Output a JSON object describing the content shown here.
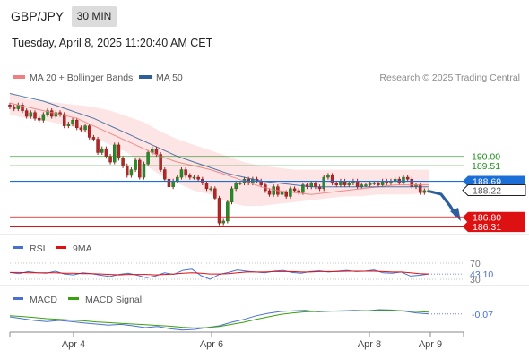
{
  "header": {
    "pair": "GBP/JPY",
    "timeframe": "30 MIN",
    "datetime": "Tuesday, April 8, 2025 11:20:40 AM CET"
  },
  "legend": {
    "ma20": "MA 20 + Bollinger Bands",
    "ma50": "MA 50",
    "research": "Research © 2025 Trading Central",
    "colors": {
      "ma20": "#f08080",
      "ma50": "#2f5f9a",
      "band": "#fde0e0"
    }
  },
  "chart_data": [
    {
      "type": "candlestick",
      "title": "GBP/JPY 30 MIN",
      "xlabel": "",
      "ylabel": "",
      "x_ticks": [
        "Apr 4",
        "Apr 6",
        "Apr 8",
        "Apr 9"
      ],
      "ylim": [
        185.8,
        193.7
      ],
      "close": [
        192.6,
        192.5,
        192.7,
        192.4,
        192.1,
        192.3,
        192.0,
        191.9,
        192.2,
        192.4,
        192.1,
        192.3,
        192.2,
        191.6,
        191.7,
        191.9,
        191.5,
        191.4,
        191.6,
        191.0,
        190.9,
        190.2,
        190.4,
        190.0,
        189.7,
        190.6,
        189.9,
        189.5,
        189.0,
        189.3,
        189.8,
        188.9,
        189.6,
        190.2,
        190.4,
        190.1,
        189.3,
        188.8,
        188.4,
        188.7,
        188.9,
        189.3,
        189.0,
        188.9,
        188.9,
        188.8,
        188.6,
        188.3,
        188.3,
        187.8,
        186.5,
        186.6,
        187.6,
        188.3,
        188.6,
        188.6,
        188.8,
        188.6,
        188.8,
        188.7,
        188.5,
        188.2,
        188.0,
        188.4,
        188.0,
        188.1,
        187.9,
        188.3,
        188.2,
        188.1,
        188.5,
        188.4,
        188.6,
        188.4,
        188.3,
        188.9,
        189.0,
        188.6,
        188.5,
        188.7,
        188.5,
        188.6,
        188.7,
        188.4,
        188.5,
        188.5,
        188.6,
        188.6,
        188.5,
        188.7,
        188.6,
        188.7,
        188.8,
        188.6,
        188.9,
        188.8,
        188.4,
        188.5,
        188.1,
        188.2,
        188.2
      ],
      "series": [
        {
          "name": "MA 20",
          "values": [
            192.8,
            192.6,
            192.4,
            192.2,
            192.0,
            191.6,
            191.2,
            190.8,
            190.4,
            190.0,
            189.7,
            189.5,
            189.3,
            189.0,
            188.7,
            188.4,
            188.2,
            188.1,
            188.0,
            188.1,
            188.2,
            188.3,
            188.4,
            188.5,
            188.5,
            188.5
          ]
        },
        {
          "name": "MA 50",
          "values": [
            193.3,
            193.1,
            192.9,
            192.6,
            192.3,
            192.0,
            191.6,
            191.2,
            190.8,
            190.4,
            190.0,
            189.7,
            189.4,
            189.1,
            188.9,
            188.7,
            188.6,
            188.5,
            188.4,
            188.4,
            188.4,
            188.4,
            188.4,
            188.4,
            188.4,
            188.4
          ]
        }
      ],
      "bollinger_upper": [
        193.3,
        193.0,
        192.9,
        192.8,
        192.7,
        192.6,
        192.4,
        192.1,
        191.8,
        191.3,
        190.9,
        190.6,
        190.3,
        190.0,
        189.7,
        189.5,
        189.4,
        189.3,
        189.3,
        189.3,
        189.3,
        189.3,
        189.3,
        189.3,
        189.3,
        189.3
      ],
      "bollinger_lower": [
        192.2,
        192.0,
        191.9,
        191.7,
        191.5,
        191.0,
        190.6,
        190.2,
        189.6,
        189.0,
        188.6,
        188.2,
        188.0,
        187.6,
        187.4,
        187.4,
        187.5,
        187.6,
        187.7,
        187.8,
        187.9,
        187.9,
        188.0,
        188.0,
        188.0,
        188.1
      ],
      "levels": [
        {
          "label": "190.00",
          "value": 190.0,
          "color": "#1a8f1a"
        },
        {
          "label": "189.51",
          "value": 189.51,
          "color": "#1a8f1a"
        },
        {
          "label": "188.69",
          "value": 188.69,
          "color": "#1c6fd6"
        },
        {
          "label": "188.22",
          "value": 188.22,
          "color": "#333333"
        },
        {
          "label": "186.80",
          "value": 186.8,
          "color": "#dd1111"
        },
        {
          "label": "186.31",
          "value": 186.31,
          "color": "#dd1111"
        }
      ]
    },
    {
      "type": "line",
      "title": "RSI",
      "series": [
        {
          "name": "RSI",
          "values": [
            47,
            44,
            49,
            46,
            45,
            50,
            43,
            41,
            46,
            44,
            40,
            37,
            42,
            45,
            40,
            34,
            38,
            46,
            42,
            52,
            55,
            39,
            30,
            42,
            47,
            53,
            50,
            48,
            46,
            50,
            52,
            47,
            45,
            49,
            51,
            48,
            50,
            52,
            49,
            50,
            53,
            46,
            45,
            48,
            38,
            40,
            43
          ]
        },
        {
          "name": "9MA",
          "values": [
            47,
            47,
            46,
            46,
            46,
            46,
            45,
            45,
            44,
            44,
            43,
            42,
            41,
            42,
            42,
            42,
            41,
            42,
            43,
            45,
            46,
            45,
            43,
            43,
            44,
            46,
            48,
            48,
            48,
            49,
            49,
            49,
            48,
            48,
            49,
            49,
            49,
            50,
            50,
            50,
            50,
            49,
            48,
            48,
            46,
            44,
            43
          ]
        }
      ],
      "levels": [
        {
          "label": "70",
          "value": 70
        },
        {
          "label": "43.10",
          "value": 43.1
        },
        {
          "label": "30",
          "value": 30
        }
      ],
      "colors": {
        "RSI": "#4a6fd4",
        "9MA": "#e01010"
      }
    },
    {
      "type": "line",
      "title": "MACD",
      "series": [
        {
          "name": "MACD",
          "values": [
            -0.15,
            -0.2,
            -0.25,
            -0.28,
            -0.25,
            -0.28,
            -0.32,
            -0.35,
            -0.38,
            -0.36,
            -0.4,
            -0.45,
            -0.42,
            -0.48,
            -0.52,
            -0.5,
            -0.45,
            -0.4,
            -0.3,
            -0.22,
            -0.12,
            -0.05,
            0.0,
            0.02,
            0.03,
            -0.01,
            0.01,
            0.02,
            0.03,
            0.02,
            0.05,
            0.04,
            0.01,
            -0.04,
            -0.07
          ]
        },
        {
          "name": "MACD Signal",
          "values": [
            -0.12,
            -0.14,
            -0.17,
            -0.2,
            -0.22,
            -0.24,
            -0.26,
            -0.29,
            -0.31,
            -0.33,
            -0.35,
            -0.37,
            -0.39,
            -0.41,
            -0.44,
            -0.46,
            -0.45,
            -0.42,
            -0.36,
            -0.3,
            -0.22,
            -0.15,
            -0.08,
            -0.04,
            -0.01,
            0.0,
            0.01,
            0.01,
            0.02,
            0.02,
            0.03,
            0.03,
            0.02,
            0.0,
            -0.02
          ]
        }
      ],
      "levels": [
        {
          "label": "-0.07",
          "value": -0.07
        }
      ],
      "colors": {
        "MACD": "#4a6fd4",
        "MACD Signal": "#3aa010"
      }
    }
  ]
}
